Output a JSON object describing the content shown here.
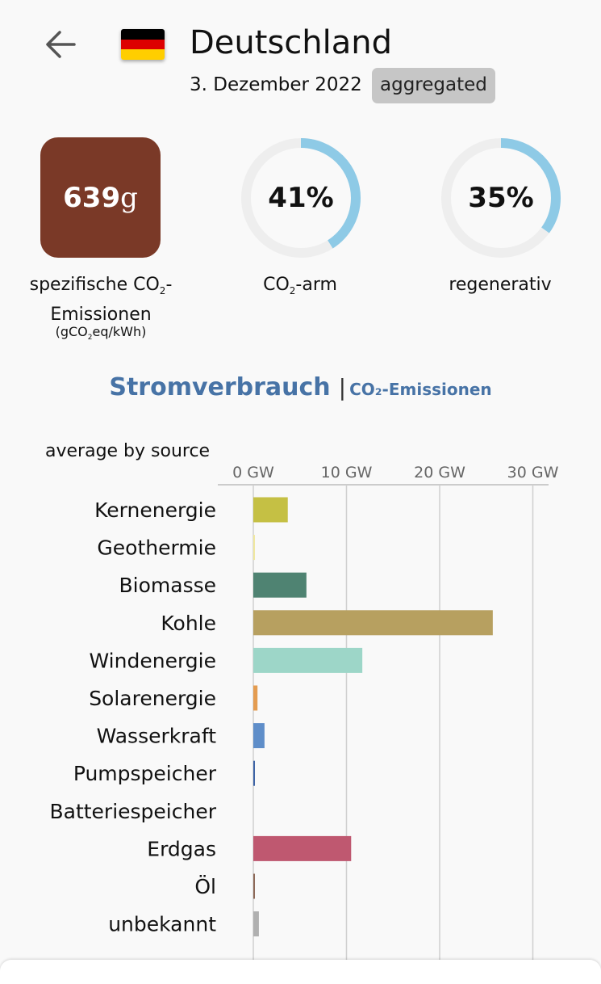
{
  "header": {
    "country": "Deutschland",
    "date": "3. Dezember 2022",
    "badge": "aggregated",
    "back_icon": "arrow-left-icon",
    "flag_colors": [
      "#000000",
      "#dd0000",
      "#ffce00"
    ]
  },
  "metrics": {
    "co2_intensity": {
      "value": "639",
      "unit": "g",
      "color": "#7a3927",
      "label_line1_a": "spezifische CO",
      "label_line1_sub": "2",
      "label_line1_b": "-",
      "label_line2": "Emissionen",
      "unit_label_a": "(gCO",
      "unit_label_sub": "2",
      "unit_label_b": "eq/kWh)"
    },
    "low_carbon": {
      "value": "41%",
      "fraction": 0.41,
      "label_a": "CO",
      "label_sub": "2",
      "label_b": "-arm"
    },
    "renewable": {
      "value": "35%",
      "fraction": 0.35,
      "label": "regenerativ"
    },
    "ring_color": "#8ecae6",
    "ring_track_color": "#eeeeee"
  },
  "tabs": {
    "active": "Stromverbrauch",
    "separator": "|",
    "inactive": "CO₂-Emissionen"
  },
  "chart_data": {
    "type": "bar",
    "orientation": "horizontal",
    "title": "average by source",
    "axis_ticks": [
      "0 GW",
      "10 GW",
      "20 GW",
      "30 GW"
    ],
    "tick_values": [
      0,
      10,
      20,
      30
    ],
    "xlim": [
      0,
      31.5
    ],
    "unit": "GW",
    "grid": true,
    "categories": [
      "Kernenergie",
      "Geothermie",
      "Biomasse",
      "Kohle",
      "Windenergie",
      "Solarenergie",
      "Wasserkraft",
      "Pumpspeicher",
      "Batteriespeicher",
      "Erdgas",
      "Öl",
      "unbekannt"
    ],
    "values": [
      3.7,
      0.1,
      5.7,
      25.7,
      11.7,
      0.45,
      1.2,
      0.15,
      0.0,
      10.5,
      0.15,
      0.6
    ],
    "colors": [
      "#c5c044",
      "#f0e8a0",
      "#4f8372",
      "#b7a060",
      "#9dd6c8",
      "#e49c50",
      "#5f8ec9",
      "#3e64a6",
      "#7d49a0",
      "#bf5870",
      "#8d6958",
      "#b0b0b0"
    ]
  }
}
